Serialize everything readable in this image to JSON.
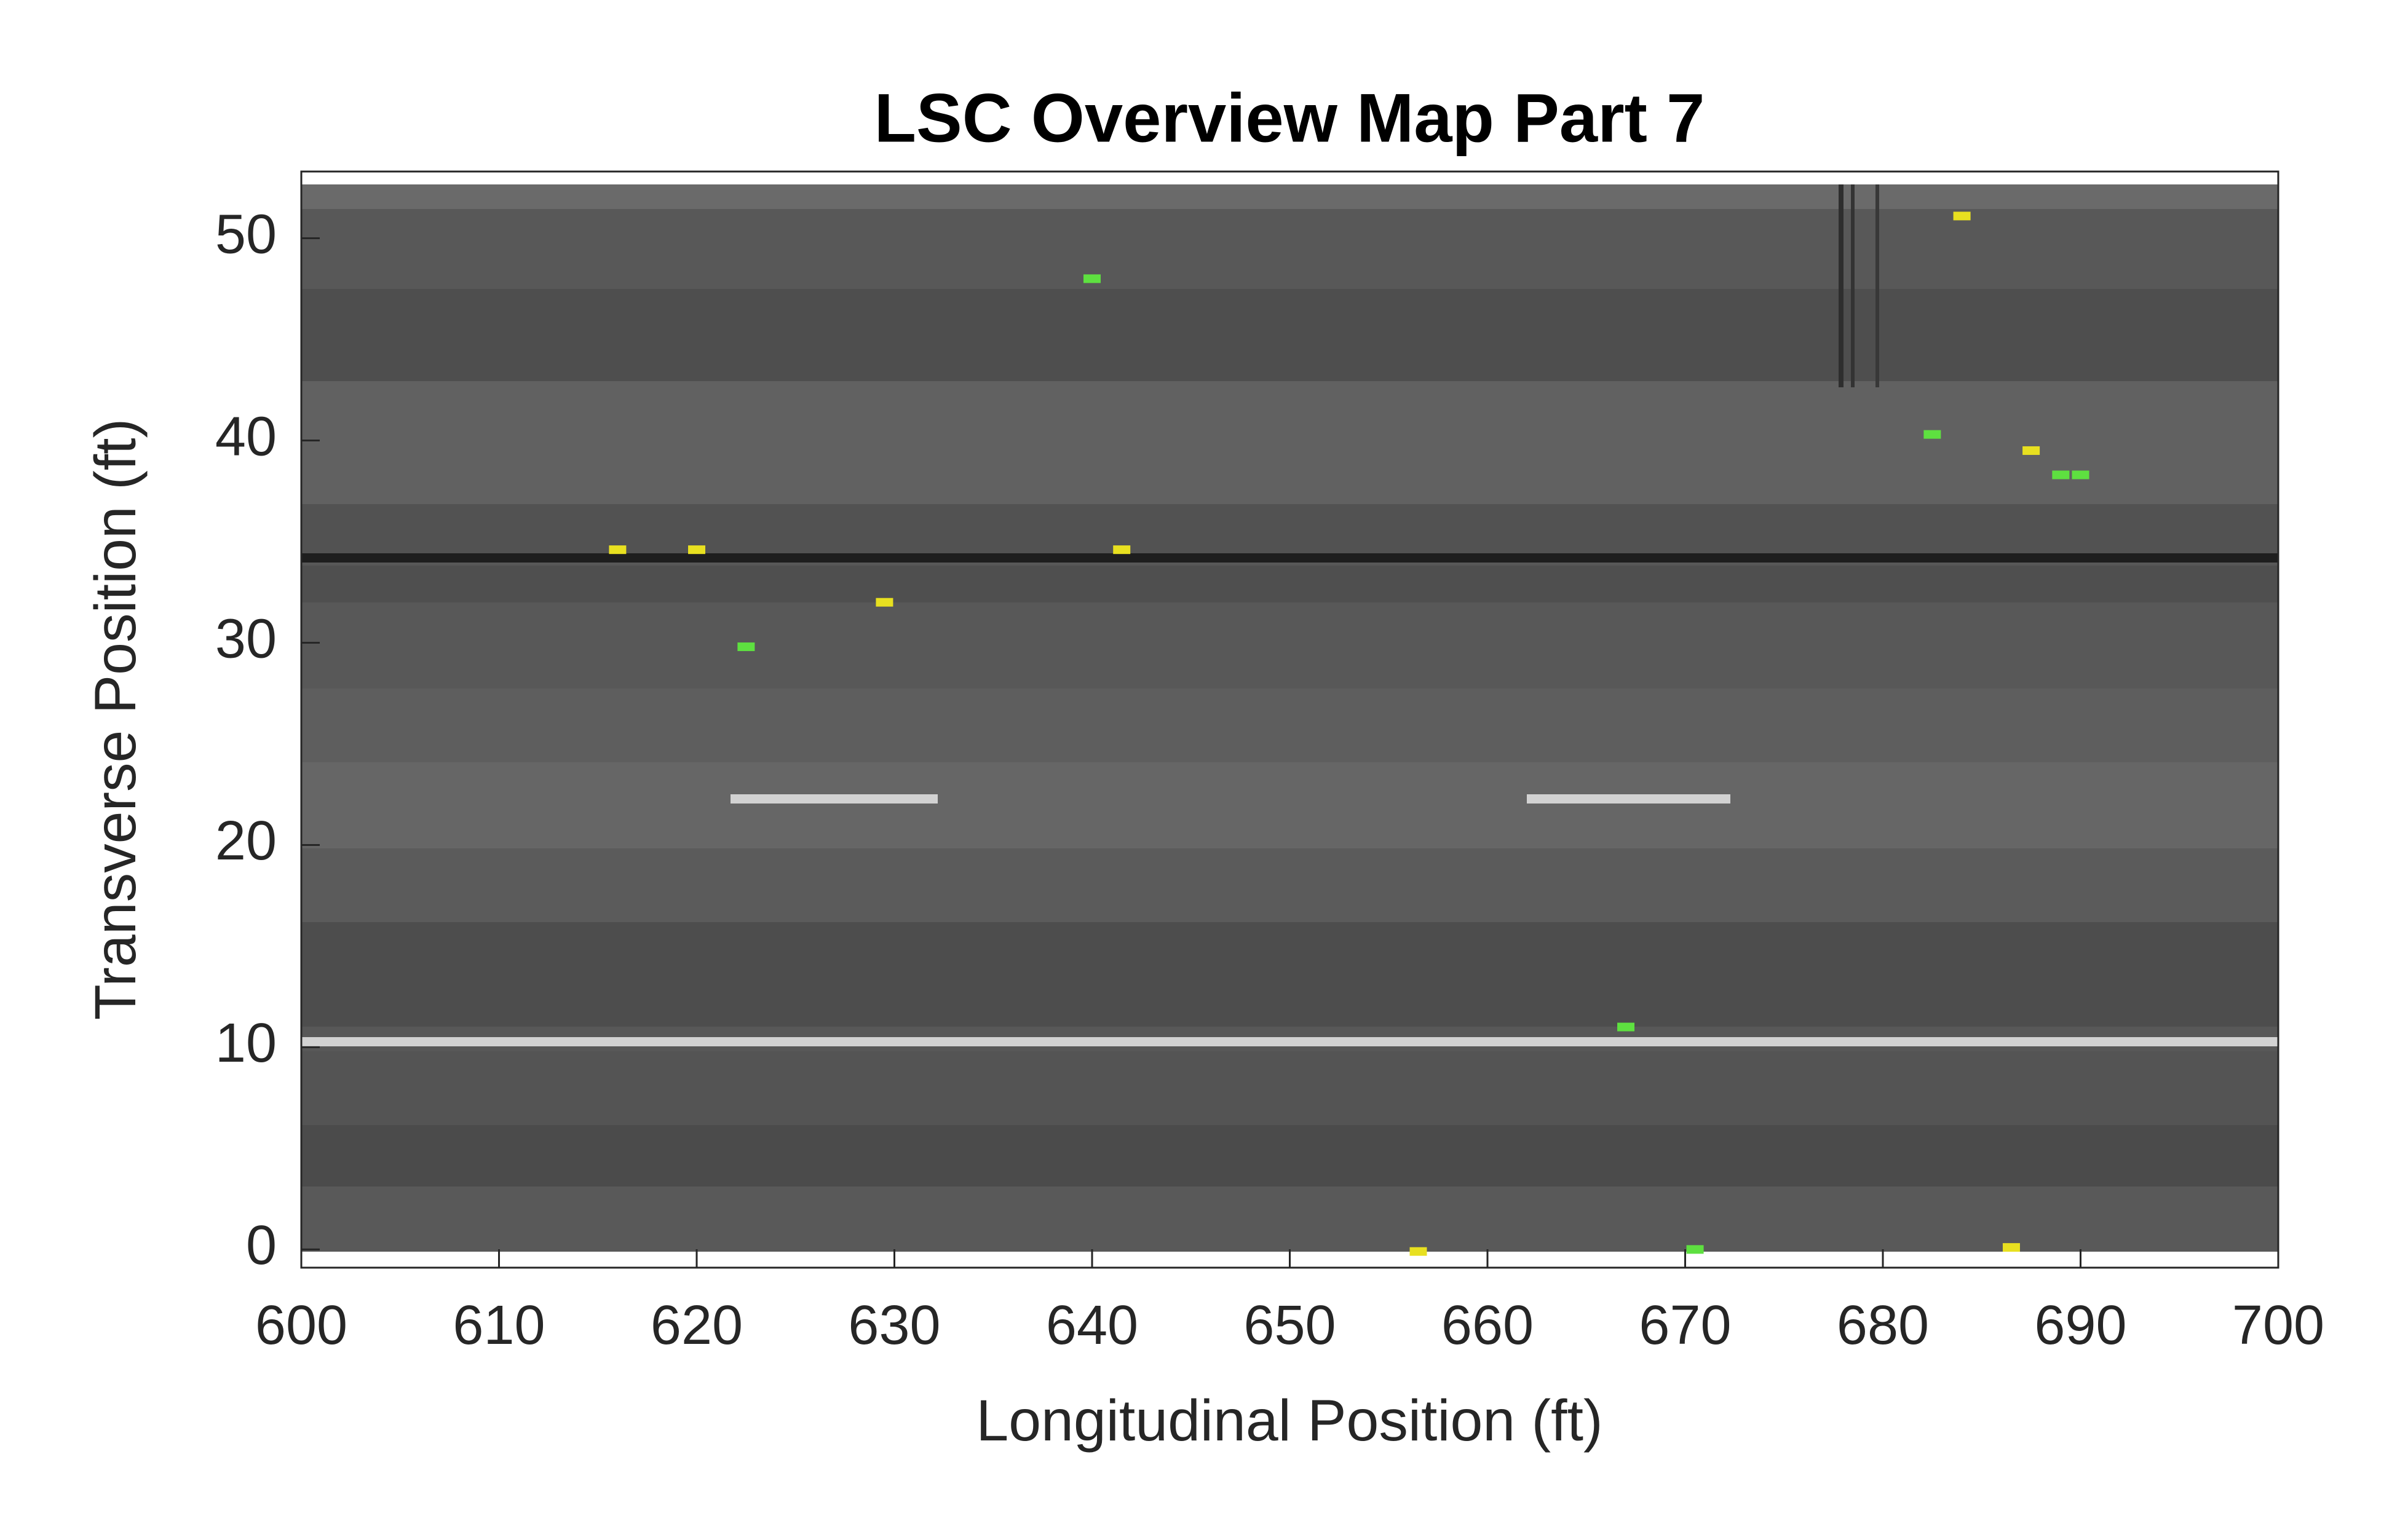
{
  "chart_data": {
    "type": "image-map",
    "title": "LSC Overview Map Part 7",
    "x_label": "Longitudinal Position (ft)",
    "y_label": "Transverse Position (ft)",
    "xlim": [
      600,
      700
    ],
    "ylim": [
      -0.9,
      53.3
    ],
    "xticks": [
      600,
      610,
      620,
      630,
      640,
      650,
      660,
      670,
      680,
      690,
      700
    ],
    "yticks": [
      0,
      10,
      20,
      30,
      40,
      50
    ],
    "series": [
      {
        "color": "#e8e020",
        "x": [
          616,
          620,
          641.5,
          629.5,
          684,
          687.5,
          656.5,
          686.5
        ],
        "y": [
          34.6,
          34.6,
          34.6,
          32,
          51.1,
          39.5,
          -0.1,
          0.1
        ]
      },
      {
        "color": "#5ee040",
        "x": [
          640,
          622.5,
          682.5,
          689,
          690,
          667,
          670.5
        ],
        "y": [
          48,
          29.8,
          40.3,
          38.3,
          38.3,
          11,
          0
        ]
      }
    ]
  }
}
